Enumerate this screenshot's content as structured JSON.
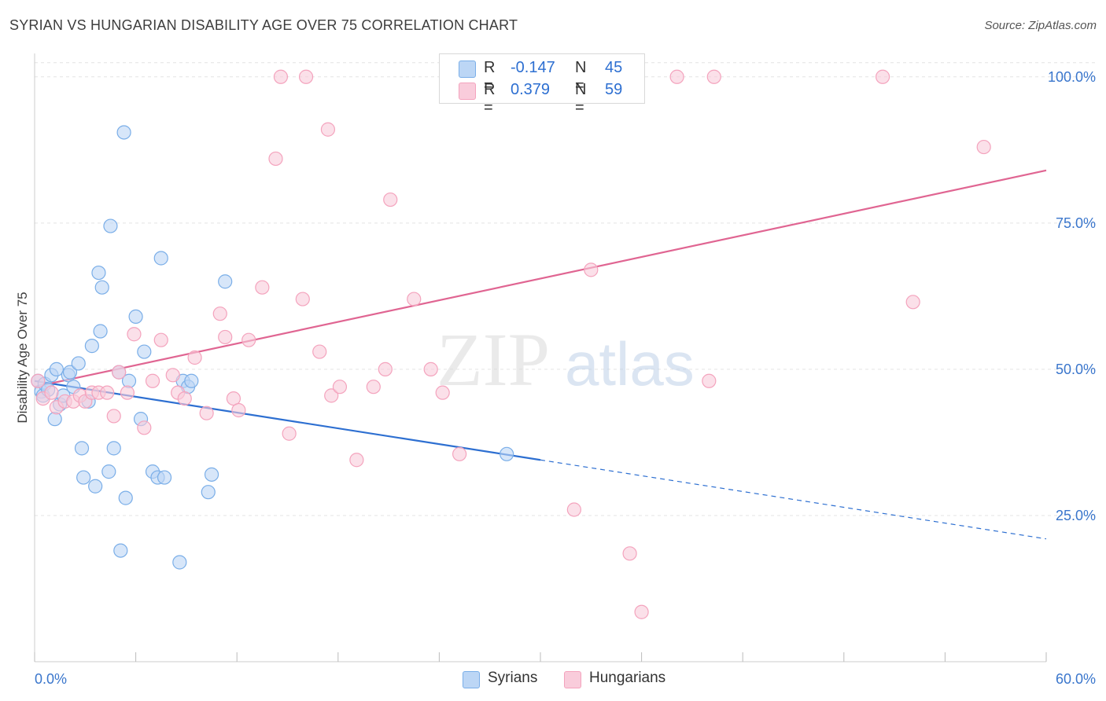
{
  "title": "SYRIAN VS HUNGARIAN DISABILITY AGE OVER 75 CORRELATION CHART",
  "source": "Source: ZipAtlas.com",
  "watermark": {
    "part1": "ZIP",
    "part2": "atlas"
  },
  "legend": {
    "rows": [
      {
        "r_label": "R =",
        "r_value": "-0.147",
        "n_label": "N =",
        "n_value": "45"
      },
      {
        "r_label": "R =",
        "r_value": "0.379",
        "n_label": "N =",
        "n_value": "59"
      }
    ]
  },
  "bottom_legend": {
    "syrians": "Syrians",
    "hungarians": "Hungarians"
  },
  "chart_data": {
    "type": "scatter",
    "ylabel": "Disability Age Over 75",
    "xlim": [
      0,
      60
    ],
    "ylim": [
      0,
      104
    ],
    "x_tick_labels": {
      "min": "0.0%",
      "max": "60.0%"
    },
    "y_tick_labels": [
      "100.0%",
      "75.0%",
      "50.0%",
      "25.0%"
    ],
    "y_tick_values": [
      100,
      75,
      50,
      25
    ],
    "colors": {
      "syrians": "#7aaee8",
      "hungarians": "#f4a3bd",
      "syrians_line": "#2d6fd1",
      "hungarians_line": "#e06592",
      "tick_label": "#3a76cc"
    },
    "series": [
      {
        "name": "Syrians",
        "points": [
          [
            0.2,
            48.0
          ],
          [
            0.4,
            46.2
          ],
          [
            0.5,
            45.5
          ],
          [
            0.6,
            47.5
          ],
          [
            0.8,
            46.5
          ],
          [
            1.0,
            49.0
          ],
          [
            1.2,
            41.5
          ],
          [
            1.3,
            50.0
          ],
          [
            1.5,
            44.0
          ],
          [
            1.7,
            45.5
          ],
          [
            2.0,
            49.0
          ],
          [
            2.1,
            49.5
          ],
          [
            2.3,
            47.0
          ],
          [
            2.6,
            51.0
          ],
          [
            2.8,
            36.5
          ],
          [
            2.9,
            31.5
          ],
          [
            3.2,
            44.5
          ],
          [
            3.4,
            54.0
          ],
          [
            3.6,
            30.0
          ],
          [
            3.8,
            66.5
          ],
          [
            3.9,
            56.5
          ],
          [
            4.0,
            64.0
          ],
          [
            4.4,
            32.5
          ],
          [
            4.5,
            74.5
          ],
          [
            4.7,
            36.5
          ],
          [
            5.0,
            49.5
          ],
          [
            5.1,
            19.0
          ],
          [
            5.3,
            90.5
          ],
          [
            5.4,
            28.0
          ],
          [
            5.6,
            48.0
          ],
          [
            6.0,
            59.0
          ],
          [
            6.3,
            41.5
          ],
          [
            6.5,
            53.0
          ],
          [
            7.0,
            32.5
          ],
          [
            7.3,
            31.5
          ],
          [
            7.5,
            69.0
          ],
          [
            7.7,
            31.5
          ],
          [
            8.6,
            17.0
          ],
          [
            8.8,
            48.0
          ],
          [
            9.1,
            47.0
          ],
          [
            9.3,
            48.0
          ],
          [
            10.3,
            29.0
          ],
          [
            10.5,
            32.0
          ],
          [
            11.3,
            65.0
          ],
          [
            28.0,
            35.5
          ]
        ]
      },
      {
        "name": "Hungarians",
        "points": [
          [
            0.2,
            48.0
          ],
          [
            0.5,
            45.0
          ],
          [
            1.0,
            46.0
          ],
          [
            1.3,
            43.5
          ],
          [
            1.8,
            44.5
          ],
          [
            2.3,
            44.5
          ],
          [
            2.7,
            45.5
          ],
          [
            3.0,
            44.5
          ],
          [
            3.4,
            46.0
          ],
          [
            3.8,
            46.0
          ],
          [
            4.3,
            46.0
          ],
          [
            4.7,
            42.0
          ],
          [
            5.0,
            49.5
          ],
          [
            5.5,
            46.0
          ],
          [
            5.9,
            56.0
          ],
          [
            6.5,
            40.0
          ],
          [
            7.0,
            48.0
          ],
          [
            7.5,
            55.0
          ],
          [
            8.2,
            49.0
          ],
          [
            8.5,
            46.0
          ],
          [
            8.9,
            45.0
          ],
          [
            9.5,
            52.0
          ],
          [
            10.2,
            42.5
          ],
          [
            11.0,
            59.5
          ],
          [
            11.3,
            55.5
          ],
          [
            11.8,
            45.0
          ],
          [
            12.1,
            43.0
          ],
          [
            12.7,
            55.0
          ],
          [
            13.5,
            64.0
          ],
          [
            14.3,
            86.0
          ],
          [
            14.6,
            100.0
          ],
          [
            15.1,
            39.0
          ],
          [
            15.9,
            62.0
          ],
          [
            16.1,
            100.0
          ],
          [
            16.9,
            53.0
          ],
          [
            17.4,
            91.0
          ],
          [
            17.6,
            45.5
          ],
          [
            18.1,
            47.0
          ],
          [
            19.1,
            34.5
          ],
          [
            20.1,
            47.0
          ],
          [
            20.8,
            50.0
          ],
          [
            21.1,
            79.0
          ],
          [
            22.5,
            62.0
          ],
          [
            23.5,
            50.0
          ],
          [
            24.2,
            46.0
          ],
          [
            25.2,
            35.5
          ],
          [
            27.6,
            100.0
          ],
          [
            28.8,
            100.0
          ],
          [
            30.2,
            100.0
          ],
          [
            32.0,
            26.0
          ],
          [
            33.0,
            67.0
          ],
          [
            35.3,
            18.5
          ],
          [
            36.0,
            8.5
          ],
          [
            38.1,
            100.0
          ],
          [
            40.0,
            48.0
          ],
          [
            40.3,
            100.0
          ],
          [
            50.3,
            100.0
          ],
          [
            52.1,
            61.5
          ],
          [
            56.3,
            88.0
          ]
        ]
      }
    ],
    "trend_lines": [
      {
        "name": "Syrians",
        "x_start": 0,
        "y_start": 48.0,
        "x_solid_end": 30,
        "x_end": 60,
        "y_end": 21.0
      },
      {
        "name": "Hungarians",
        "x_start": 0,
        "y_start": 47.0,
        "x_end": 60,
        "y_end": 84.0
      }
    ]
  }
}
